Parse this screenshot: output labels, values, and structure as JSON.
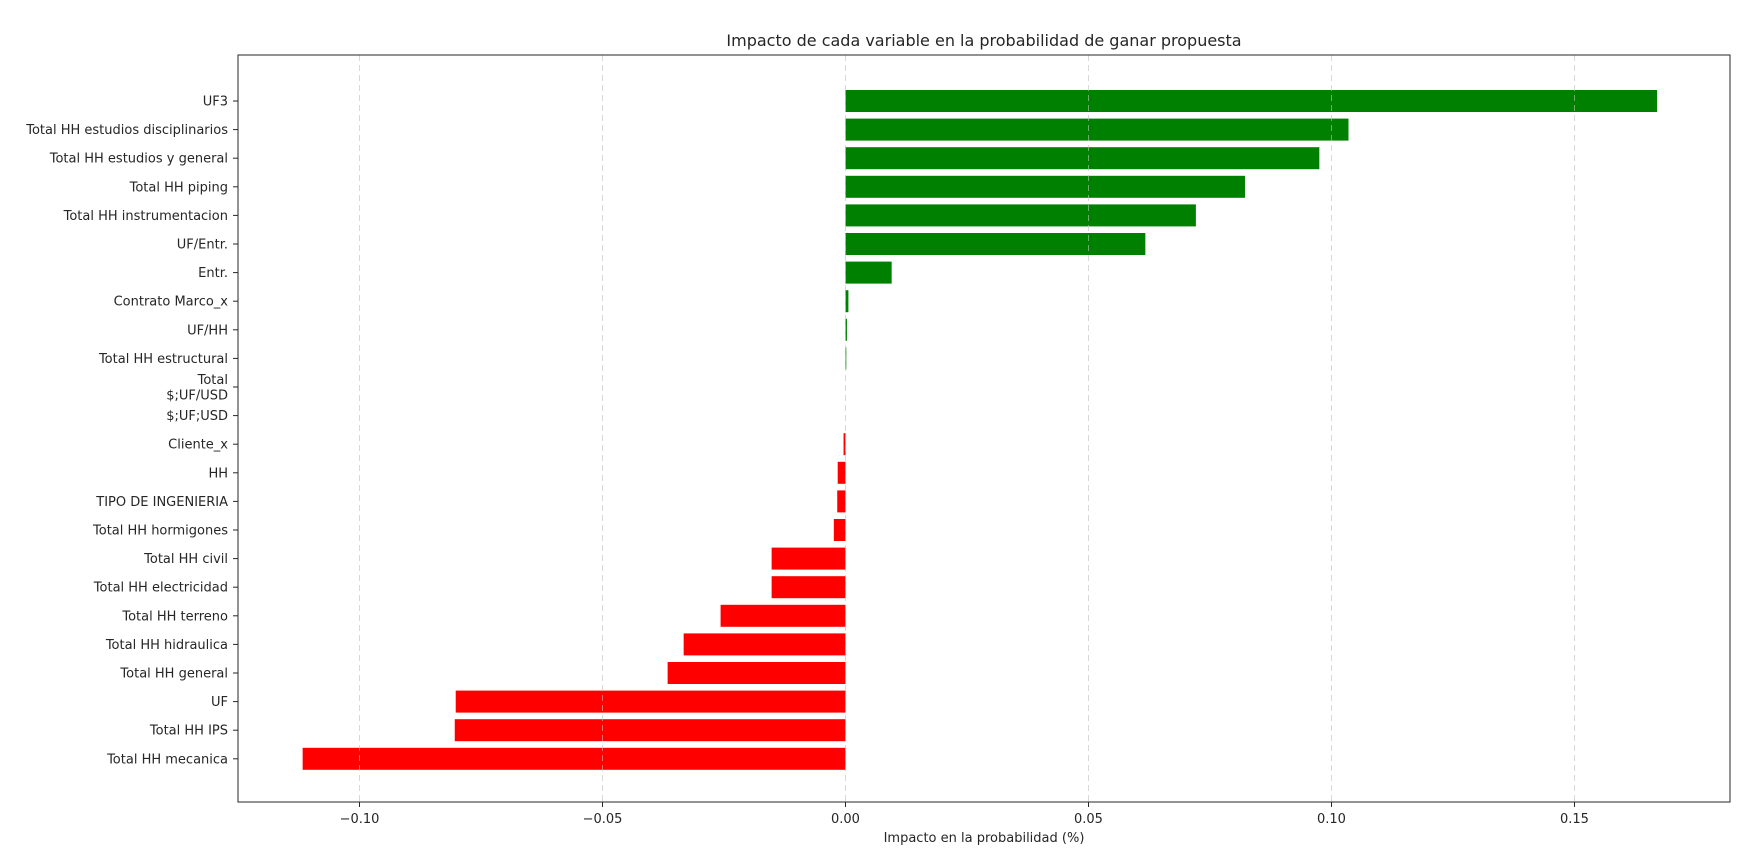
{
  "chart_data": {
    "type": "bar",
    "orientation": "horizontal",
    "title": "Impacto de cada variable en la probabilidad de ganar propuesta",
    "xlabel": "Impacto en la probabilidad (%)",
    "ylabel": "",
    "xlim": [
      -0.125,
      0.182
    ],
    "xticks": [
      -0.1,
      -0.05,
      0.0,
      0.05,
      0.1,
      0.15
    ],
    "xtick_labels": [
      "−0.10",
      "−0.05",
      "0.00",
      "0.05",
      "0.10",
      "0.15"
    ],
    "grid": "vertical dashed",
    "positive_color": "#008000",
    "negative_color": "#ff0000",
    "categories": [
      "UF3",
      "Total HH estudios disciplinarios",
      "Total HH estudios y general",
      "Total HH piping",
      "Total HH instrumentacion",
      "UF/Entr.",
      "Entr.",
      "Contrato Marco_x",
      "UF/HH",
      "Total HH estructural",
      "Total\n$;UF/USD",
      "$;UF;USD",
      "Cliente_x",
      "HH",
      "TIPO DE INGENIERIA",
      "Total HH hormigones",
      "Total HH civil",
      "Total HH electricidad",
      "Total HH terreno",
      "Total HH hidraulica",
      "Total HH general",
      "UF",
      "Total HH IPS",
      "Total HH mecanica"
    ],
    "values": [
      0.167,
      0.1035,
      0.0975,
      0.0822,
      0.0721,
      0.0617,
      0.0095,
      0.0006,
      0.0003,
      0.0001,
      0.0,
      0.0,
      -0.0004,
      -0.0016,
      -0.0017,
      -0.0024,
      -0.0152,
      -0.0152,
      -0.0257,
      -0.0333,
      -0.0366,
      -0.0802,
      -0.0804,
      -0.1117
    ]
  }
}
